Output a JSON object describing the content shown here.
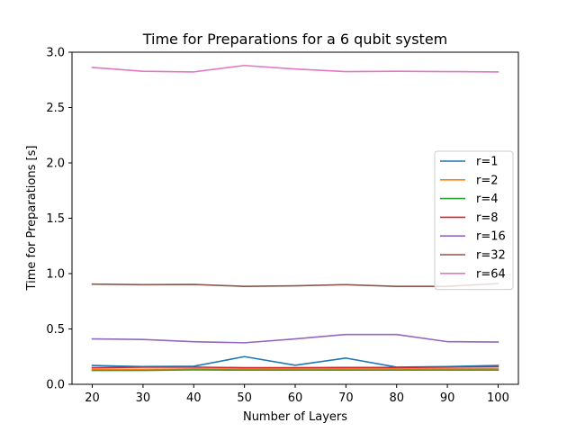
{
  "chart_data": {
    "type": "line",
    "title": "Time for Preparations for a 6 qubit system",
    "xlabel": "Number of Layers",
    "ylabel": "Time for Preparations [s]",
    "x": [
      20,
      30,
      40,
      50,
      60,
      70,
      80,
      90,
      100
    ],
    "xlim": [
      16,
      104
    ],
    "ylim": [
      0.0,
      3.0
    ],
    "xticks": [
      "20",
      "30",
      "40",
      "50",
      "60",
      "70",
      "80",
      "90",
      "100"
    ],
    "yticks": [
      "0.0",
      "0.5",
      "1.0",
      "1.5",
      "2.0",
      "2.5",
      "3.0"
    ],
    "grid": false,
    "legend_position": "center-right",
    "series": [
      {
        "name": "r=1",
        "color": "#1f77b4",
        "values": [
          0.17,
          0.16,
          0.163,
          0.25,
          0.172,
          0.237,
          0.155,
          0.16,
          0.17
        ]
      },
      {
        "name": "r=2",
        "color": "#ff7f0e",
        "values": [
          0.135,
          0.135,
          0.14,
          0.138,
          0.138,
          0.14,
          0.14,
          0.14,
          0.14
        ]
      },
      {
        "name": "r=4",
        "color": "#2ca02c",
        "values": [
          0.125,
          0.125,
          0.13,
          0.128,
          0.128,
          0.128,
          0.128,
          0.128,
          0.128
        ]
      },
      {
        "name": "r=8",
        "color": "#d62728",
        "values": [
          0.15,
          0.155,
          0.155,
          0.15,
          0.15,
          0.152,
          0.152,
          0.155,
          0.158
        ]
      },
      {
        "name": "r=16",
        "color": "#9467bd",
        "values": [
          0.41,
          0.405,
          0.385,
          0.375,
          0.41,
          0.45,
          0.45,
          0.385,
          0.382
        ]
      },
      {
        "name": "r=32",
        "color": "#8c564b",
        "values": [
          0.905,
          0.9,
          0.902,
          0.885,
          0.89,
          0.9,
          0.885,
          0.885,
          0.91
        ]
      },
      {
        "name": "r=64",
        "color": "#e377c2",
        "values": [
          2.862,
          2.828,
          2.822,
          2.88,
          2.848,
          2.825,
          2.828,
          2.825,
          2.822
        ]
      }
    ]
  }
}
